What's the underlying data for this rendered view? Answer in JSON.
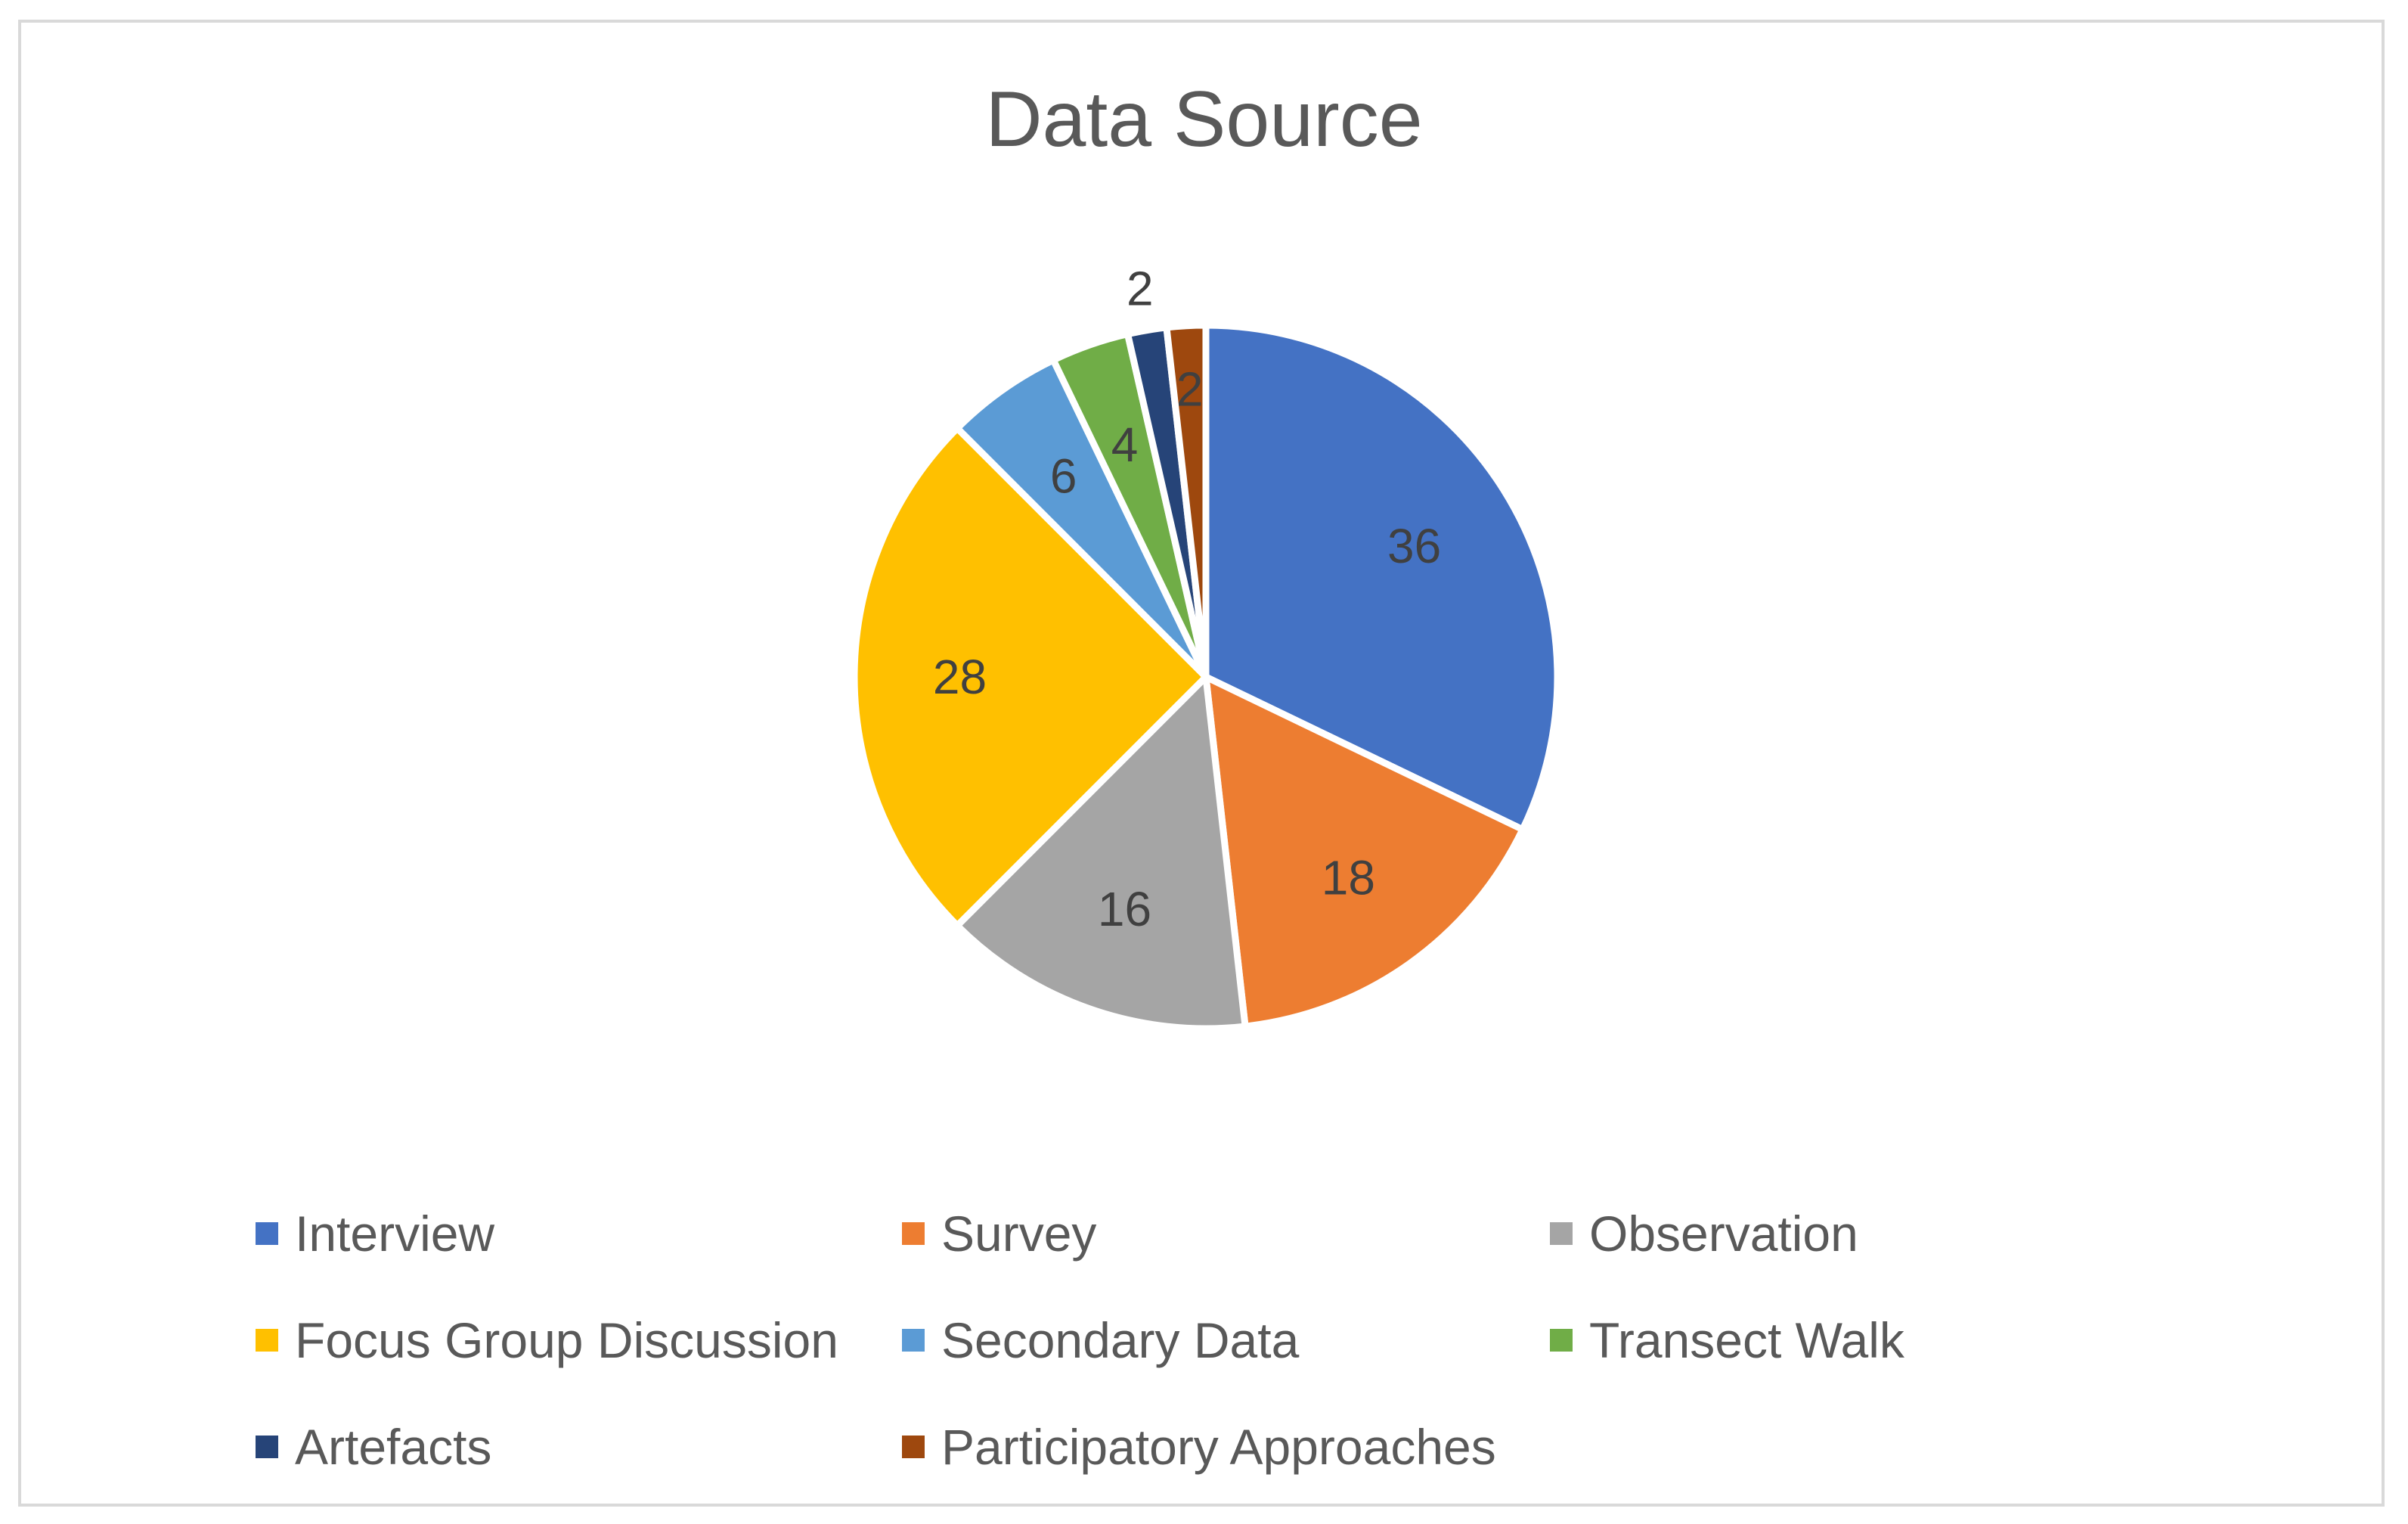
{
  "chart_data": {
    "type": "pie",
    "title": "Data Source",
    "categories": [
      "Interview",
      "Survey",
      "Observation",
      "Focus Group Discussion",
      "Secondary Data",
      "Transect Walk",
      "Artefacts",
      "Participatory Approaches"
    ],
    "values": [
      36,
      18,
      16,
      28,
      6,
      4,
      2,
      2
    ],
    "colors": [
      "#4472c4",
      "#ed7d31",
      "#a5a5a5",
      "#ffc000",
      "#5b9bd5",
      "#70ad47",
      "#264478",
      "#9e480e"
    ],
    "data_labels": [
      "36",
      "18",
      "16",
      "28",
      "6",
      "4",
      "2",
      "2"
    ],
    "legend_position": "bottom",
    "start_angle": "12 o'clock",
    "direction": "clockwise"
  }
}
